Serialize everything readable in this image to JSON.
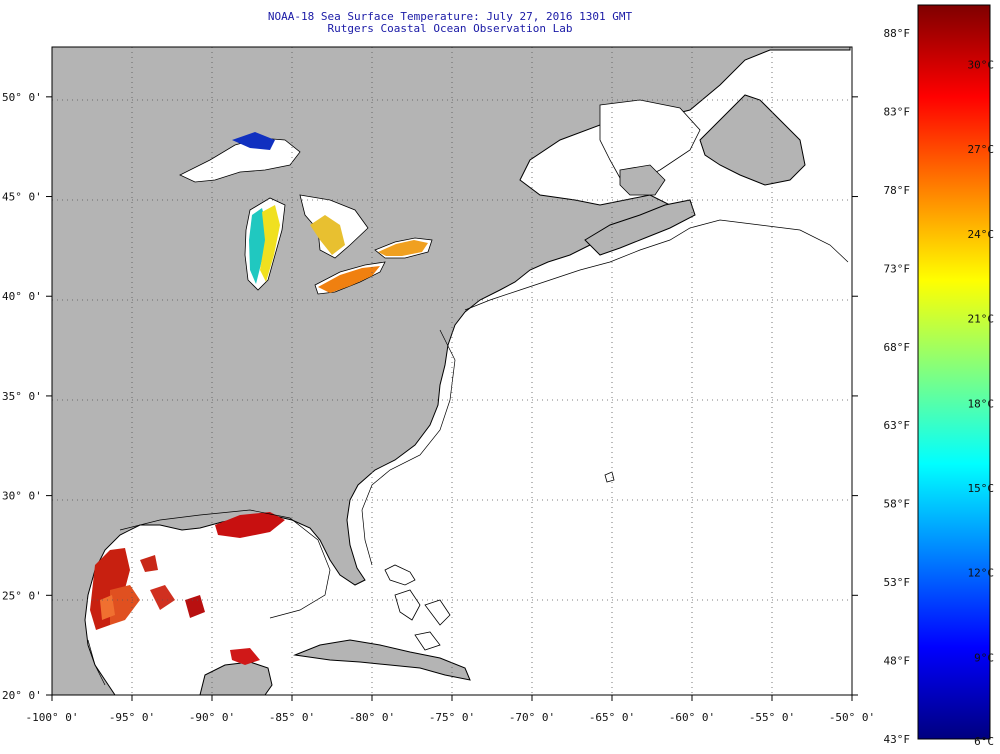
{
  "header": {
    "title": "NOAA-18 Sea Surface Temperature:  July 27, 2016 1301 GMT",
    "subtitle": "Rutgers Coastal Ocean Observation Lab"
  },
  "map": {
    "lon_range": [
      -100,
      -50
    ],
    "lat_range": [
      20,
      52.5
    ],
    "grid": "dotted",
    "land_color": "#b4b4b4",
    "ocean_color": "#ffffff",
    "lon_ticks": [
      {
        "value": -100,
        "label": "-100° 0'"
      },
      {
        "value": -95,
        "label": "-95° 0'"
      },
      {
        "value": -90,
        "label": "-90° 0'"
      },
      {
        "value": -85,
        "label": "-85° 0'"
      },
      {
        "value": -80,
        "label": "-80° 0'"
      },
      {
        "value": -75,
        "label": "-75° 0'"
      },
      {
        "value": -70,
        "label": "-70° 0'"
      },
      {
        "value": -65,
        "label": "-65° 0'"
      },
      {
        "value": -60,
        "label": "-60° 0'"
      },
      {
        "value": -55,
        "label": "-55° 0'"
      },
      {
        "value": -50,
        "label": "-50° 0'"
      }
    ],
    "lat_ticks": [
      {
        "value": 50,
        "label": "50° 0'"
      },
      {
        "value": 45,
        "label": "45° 0'"
      },
      {
        "value": 40,
        "label": "40° 0'"
      },
      {
        "value": 35,
        "label": "35° 0'"
      },
      {
        "value": 30,
        "label": "30° 0'"
      },
      {
        "value": 25,
        "label": "25° 0'"
      },
      {
        "value": 20,
        "label": "20° 0'"
      }
    ]
  },
  "colorbar": {
    "stops": [
      "#00007f",
      "#0000ff",
      "#0080ff",
      "#00ffff",
      "#80ff80",
      "#ffff00",
      "#ff8000",
      "#ff0000",
      "#7f0000"
    ],
    "fahrenheit_labels": [
      {
        "value": 88,
        "label": "88°F"
      },
      {
        "value": 83,
        "label": "83°F"
      },
      {
        "value": 78,
        "label": "78°F"
      },
      {
        "value": 73,
        "label": "73°F"
      },
      {
        "value": 68,
        "label": "68°F"
      },
      {
        "value": 63,
        "label": "63°F"
      },
      {
        "value": 58,
        "label": "58°F"
      },
      {
        "value": 53,
        "label": "53°F"
      },
      {
        "value": 48,
        "label": "48°F"
      },
      {
        "value": 43,
        "label": "43°F"
      }
    ],
    "celsius_labels": [
      {
        "value": 30,
        "label": "30°C"
      },
      {
        "value": 27,
        "label": "27°C"
      },
      {
        "value": 24,
        "label": "24°C"
      },
      {
        "value": 21,
        "label": "21°C"
      },
      {
        "value": 18,
        "label": "18°C"
      },
      {
        "value": 15,
        "label": "15°C"
      },
      {
        "value": 12,
        "label": "12°C"
      },
      {
        "value": 9,
        "label": "9°C"
      },
      {
        "value": 6,
        "label": "6°C"
      }
    ]
  },
  "icons": [
    "coastline-map",
    "color-scale-bar"
  ]
}
